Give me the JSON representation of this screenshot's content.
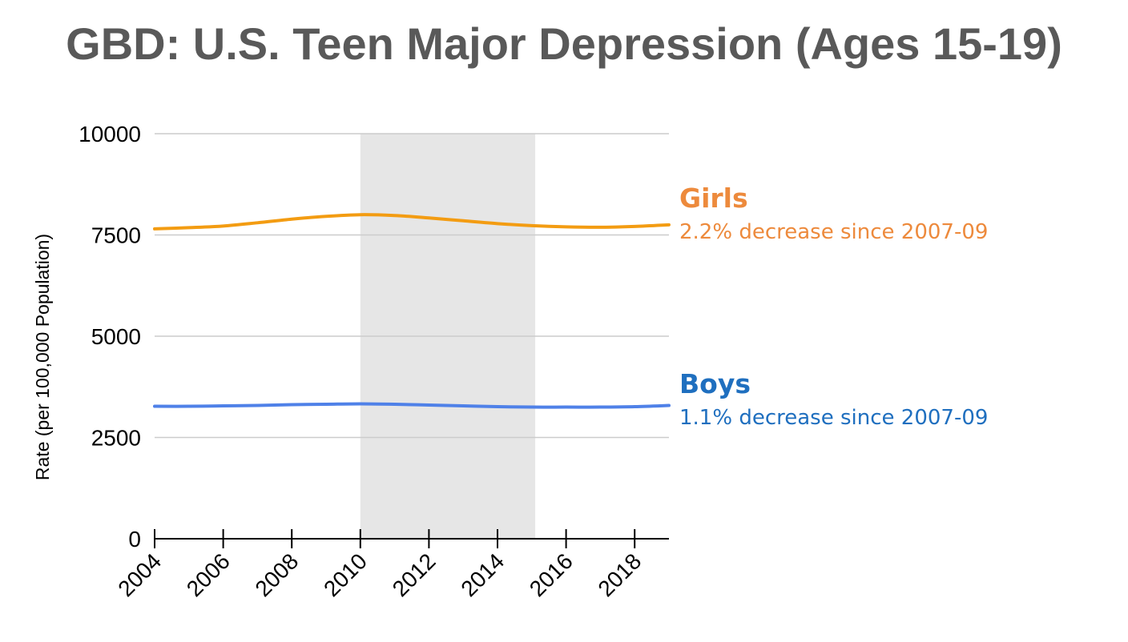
{
  "chart_data": {
    "type": "line",
    "title": "GBD: U.S. Teen Major Depression (Ages 15-19)",
    "xlabel": "",
    "ylabel": "Rate (per 100,000 Population)",
    "xlim": [
      2004,
      2019
    ],
    "ylim": [
      0,
      10000
    ],
    "yticks": [
      0,
      2500,
      5000,
      7500,
      10000
    ],
    "xticks": [
      "2004",
      "2006",
      "2008",
      "2010",
      "2012",
      "2014",
      "2016",
      "2018"
    ],
    "grid": true,
    "shaded_region": {
      "from": 2010,
      "to": 2015.1
    },
    "series": [
      {
        "name": "Girls",
        "color": "#f39c12",
        "x": [
          2004,
          2005,
          2006,
          2007,
          2008,
          2009,
          2010,
          2011,
          2012,
          2013,
          2014,
          2015,
          2016,
          2017,
          2018,
          2019
        ],
        "values": [
          7650,
          7680,
          7720,
          7800,
          7890,
          7960,
          8000,
          7980,
          7920,
          7850,
          7780,
          7730,
          7700,
          7690,
          7710,
          7750
        ],
        "annotation": {
          "label": "Girls",
          "note": "2.2% decrease since 2007-09",
          "color": "#ed8a3c"
        }
      },
      {
        "name": "Boys",
        "color": "#4f81e8",
        "x": [
          2004,
          2005,
          2006,
          2007,
          2008,
          2009,
          2010,
          2011,
          2012,
          2013,
          2014,
          2015,
          2016,
          2017,
          2018,
          2019
        ],
        "values": [
          3270,
          3270,
          3280,
          3290,
          3310,
          3320,
          3330,
          3320,
          3300,
          3280,
          3260,
          3250,
          3250,
          3250,
          3260,
          3290
        ],
        "annotation": {
          "label": "Boys",
          "note": "1.1% decrease since 2007-09",
          "color": "#1f6fbf"
        }
      }
    ]
  }
}
